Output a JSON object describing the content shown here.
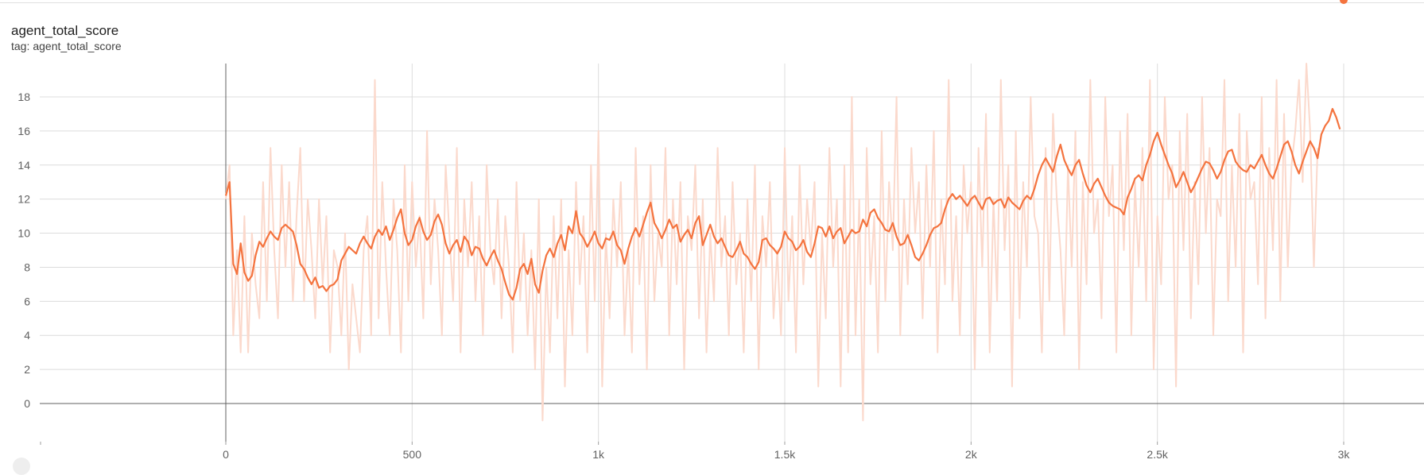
{
  "card": {
    "title": "agent_total_score",
    "tag_prefix": "tag:",
    "tag_value": "agent_total_score"
  },
  "chart_data": {
    "type": "line",
    "title": "agent_total_score",
    "xlabel": "",
    "ylabel": "",
    "xlim": [
      -500,
      3200
    ],
    "ylim": [
      -2,
      20
    ],
    "x_ticks": [
      0,
      500,
      1000,
      1500,
      2000,
      2500,
      3000
    ],
    "x_tick_labels": [
      "0",
      "500",
      "1k",
      "1.5k",
      "2k",
      "2.5k",
      "3k"
    ],
    "y_ticks": [
      0,
      2,
      4,
      6,
      8,
      10,
      12,
      14,
      16,
      18
    ],
    "y_tick_labels": [
      "0",
      "2",
      "4",
      "6",
      "8",
      "10",
      "12",
      "14",
      "16",
      "18"
    ],
    "grid": true,
    "smoothed_color": "#f4733e",
    "raw_color": "#fbd9cc",
    "series": [
      {
        "x": [
          0,
          10,
          20,
          30,
          40,
          50,
          60,
          70,
          80,
          90,
          100,
          110,
          120,
          130,
          140,
          150,
          160,
          170,
          180,
          190,
          200,
          210,
          220,
          230,
          240,
          250,
          260,
          270,
          280,
          290,
          300,
          310,
          320,
          330,
          340,
          350,
          360,
          370,
          380,
          390,
          400,
          410,
          420,
          430,
          440,
          450,
          460,
          470,
          480,
          490,
          500,
          510,
          520,
          530,
          540,
          550,
          560,
          570,
          580,
          590,
          600,
          610,
          620,
          630,
          640,
          650,
          660,
          670,
          680,
          690,
          700,
          710,
          720,
          730,
          740,
          750,
          760,
          770,
          780,
          790,
          800,
          810,
          820,
          830,
          840,
          850,
          860,
          870,
          880,
          890,
          900,
          910,
          920,
          930,
          940,
          950,
          960,
          970,
          980,
          990,
          1000,
          1010,
          1020,
          1030,
          1040,
          1050,
          1060,
          1070,
          1080,
          1090,
          1100,
          1110,
          1120,
          1130,
          1140,
          1150,
          1160,
          1170,
          1180,
          1190,
          1200,
          1210,
          1220,
          1230,
          1240,
          1250,
          1260,
          1270,
          1280,
          1290,
          1300,
          1310,
          1320,
          1330,
          1340,
          1350,
          1360,
          1370,
          1380,
          1390,
          1400,
          1410,
          1420,
          1430,
          1440,
          1450,
          1460,
          1470,
          1480,
          1490,
          1500,
          1510,
          1520,
          1530,
          1540,
          1550,
          1560,
          1570,
          1580,
          1590,
          1600,
          1610,
          1620,
          1630,
          1640,
          1650,
          1660,
          1670,
          1680,
          1690,
          1700,
          1710,
          1720,
          1730,
          1740,
          1750,
          1760,
          1770,
          1780,
          1790,
          1800,
          1810,
          1820,
          1830,
          1840,
          1850,
          1860,
          1870,
          1880,
          1890,
          1900,
          1910,
          1920,
          1930,
          1940,
          1950,
          1960,
          1970,
          1980,
          1990,
          2000,
          2010,
          2020,
          2030,
          2040,
          2050,
          2060,
          2070,
          2080,
          2090,
          2100,
          2110,
          2120,
          2130,
          2140,
          2150,
          2160,
          2170,
          2180,
          2190,
          2200,
          2210,
          2220,
          2230,
          2240,
          2250,
          2260,
          2270,
          2280,
          2290,
          2300,
          2310,
          2320,
          2330,
          2340,
          2350,
          2360,
          2370,
          2380,
          2390,
          2400,
          2410,
          2420,
          2430,
          2440,
          2450,
          2460,
          2470,
          2480,
          2490,
          2500,
          2510,
          2520,
          2530,
          2540,
          2550,
          2560,
          2570,
          2580,
          2590,
          2600,
          2610,
          2620,
          2630,
          2640,
          2650,
          2660,
          2670,
          2680,
          2690,
          2700,
          2710,
          2720,
          2730,
          2740,
          2750,
          2760,
          2770,
          2780,
          2790,
          2800,
          2810,
          2820,
          2830,
          2840,
          2850,
          2860,
          2870,
          2880,
          2890,
          2900,
          2910,
          2920,
          2930,
          2940,
          2950,
          2960,
          2970,
          2980,
          2990,
          3000
        ],
        "raw": [
          12,
          14,
          4,
          9,
          3,
          11,
          3,
          10,
          7,
          5,
          13,
          6,
          15,
          9,
          5,
          14,
          8,
          13,
          6,
          11,
          15,
          6,
          12,
          9,
          5,
          12,
          7,
          11,
          3,
          9,
          8,
          4,
          10,
          2,
          7,
          5,
          3,
          9,
          11,
          4,
          19,
          5,
          13,
          8,
          4,
          12,
          9,
          3,
          14,
          6,
          13,
          8,
          11,
          5,
          16,
          7,
          12,
          9,
          4,
          14,
          10,
          6,
          15,
          3,
          12,
          8,
          13,
          6,
          11,
          4,
          14,
          9,
          7,
          12,
          5,
          11,
          8,
          3,
          13,
          6,
          10,
          4,
          9,
          2,
          12,
          -1,
          8,
          3,
          11,
          5,
          12,
          1,
          9,
          4,
          13,
          7,
          11,
          3,
          14,
          6,
          16,
          1,
          10,
          5,
          12,
          8,
          13,
          4,
          9,
          3,
          15,
          7,
          11,
          2,
          14,
          6,
          10,
          8,
          15,
          4,
          12,
          7,
          13,
          2,
          11,
          9,
          14,
          5,
          12,
          3,
          10,
          6,
          15,
          8,
          11,
          4,
          13,
          7,
          10,
          3,
          12,
          6,
          14,
          2,
          11,
          8,
          13,
          5,
          9,
          4,
          15,
          6,
          11,
          3,
          14,
          7,
          12,
          9,
          13,
          1,
          10,
          5,
          15,
          8,
          12,
          1,
          14,
          3,
          18,
          4,
          12,
          -1,
          15,
          7,
          11,
          3,
          16,
          6,
          13,
          9,
          18,
          4,
          12,
          7,
          15,
          10,
          13,
          5,
          14,
          8,
          16,
          3,
          12,
          7,
          19,
          6,
          11,
          4,
          14,
          10,
          13,
          2,
          15,
          8,
          17,
          3,
          12,
          6,
          19,
          9,
          14,
          1,
          16,
          5,
          13,
          8,
          18,
          11,
          10,
          3,
          15,
          6,
          17,
          12,
          9,
          4,
          14,
          8,
          16,
          2,
          13,
          7,
          19,
          10,
          12,
          5,
          18,
          11,
          14,
          3,
          16,
          9,
          17,
          4,
          13,
          8,
          15,
          6,
          19,
          2,
          11,
          7,
          18,
          12,
          14,
          1,
          16,
          9,
          17,
          5,
          13,
          7,
          18,
          10,
          15,
          4,
          12,
          11,
          19,
          6,
          14,
          8,
          17,
          3,
          16,
          12,
          13,
          7,
          18,
          5,
          15,
          9,
          19,
          6,
          17,
          8,
          14,
          16,
          19,
          13,
          20,
          16,
          8,
          15
        ],
        "smoothed": [
          12.2,
          13.0,
          8.2,
          7.6,
          9.4,
          7.7,
          7.2,
          7.5,
          8.7,
          9.5,
          9.2,
          9.7,
          10.1,
          9.8,
          9.6,
          10.3,
          10.5,
          10.3,
          10.1,
          9.3,
          8.2,
          7.9,
          7.4,
          7.0,
          7.4,
          6.8,
          6.9,
          6.6,
          6.9,
          7.0,
          7.3,
          8.4,
          8.8,
          9.2,
          9.0,
          8.8,
          9.4,
          9.8,
          9.4,
          9.1,
          9.8,
          10.2,
          9.9,
          10.4,
          9.6,
          10.2,
          10.9,
          11.4,
          10.0,
          9.3,
          9.6,
          10.4,
          10.9,
          10.1,
          9.6,
          9.9,
          10.7,
          11.1,
          10.5,
          9.4,
          8.8,
          9.3,
          9.6,
          8.9,
          9.8,
          9.5,
          8.7,
          9.2,
          9.1,
          8.5,
          8.1,
          8.6,
          9.0,
          8.4,
          7.9,
          7.1,
          6.4,
          6.1,
          6.8,
          7.9,
          8.2,
          7.6,
          8.5,
          7.0,
          6.5,
          7.8,
          8.7,
          9.1,
          8.6,
          9.4,
          9.9,
          9.0,
          10.4,
          10.0,
          11.3,
          10.0,
          9.7,
          9.2,
          9.6,
          10.1,
          9.4,
          9.1,
          9.7,
          9.6,
          10.1,
          9.3,
          9.0,
          8.2,
          9.1,
          9.8,
          10.3,
          9.8,
          10.5,
          11.2,
          11.8,
          10.6,
          10.2,
          9.7,
          10.2,
          10.8,
          10.3,
          10.5,
          9.5,
          9.9,
          10.2,
          9.7,
          10.6,
          11.0,
          9.3,
          9.9,
          10.5,
          9.8,
          9.4,
          9.7,
          9.2,
          8.7,
          8.6,
          9.0,
          9.5,
          8.8,
          8.6,
          8.2,
          7.9,
          8.3,
          9.6,
          9.7,
          9.3,
          9.1,
          8.8,
          9.2,
          10.1,
          9.7,
          9.5,
          9.0,
          9.2,
          9.6,
          8.9,
          8.6,
          9.4,
          10.4,
          10.3,
          9.8,
          10.4,
          9.7,
          10.1,
          10.3,
          9.4,
          9.8,
          10.2,
          10.0,
          10.1,
          10.8,
          10.4,
          11.2,
          11.4,
          10.9,
          10.6,
          10.2,
          10.1,
          10.6,
          9.8,
          9.3,
          9.4,
          9.9,
          9.3,
          8.6,
          8.4,
          8.8,
          9.3,
          9.9,
          10.3,
          10.4,
          10.6,
          11.4,
          12.0,
          12.3,
          12.0,
          12.2,
          11.9,
          11.6,
          12.0,
          12.2,
          11.8,
          11.4,
          12.0,
          12.1,
          11.7,
          11.9,
          12.0,
          11.5,
          12.1,
          11.8,
          11.6,
          11.4,
          11.9,
          12.2,
          12.0,
          12.6,
          13.4,
          14.0,
          14.4,
          14.0,
          13.6,
          14.5,
          15.2,
          14.3,
          13.8,
          13.4,
          14.0,
          14.3,
          13.5,
          12.8,
          12.4,
          12.9,
          13.2,
          12.7,
          12.2,
          11.8,
          11.6,
          11.5,
          11.4,
          11.1,
          12.1,
          12.6,
          13.2,
          13.4,
          13.1,
          14.0,
          14.6,
          15.4,
          15.9,
          15.2,
          14.6,
          14.0,
          13.5,
          12.7,
          13.1,
          13.6,
          13.0,
          12.4,
          12.8,
          13.3,
          13.8,
          14.2,
          14.1,
          13.7,
          13.2,
          13.6,
          14.3,
          14.8,
          14.9,
          14.2,
          13.9,
          13.7,
          13.6,
          14.0,
          13.8,
          14.2,
          14.6,
          14.0,
          13.5,
          13.2,
          13.8,
          14.5,
          15.2,
          15.4,
          14.8,
          14.0,
          13.5,
          14.2,
          14.8,
          15.4,
          15.0,
          14.4,
          15.8,
          16.3,
          16.6,
          17.3,
          16.8,
          16.1
        ]
      }
    ]
  }
}
